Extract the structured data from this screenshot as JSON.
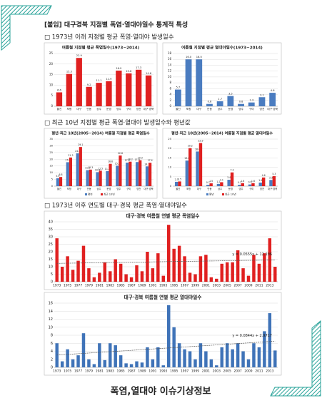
{
  "title": "[붙임] 대구경북 지점별 폭염·열대야일수 통계적 특성",
  "sections": [
    {
      "heading": "□ 1973년 이래 지점별 평균 폭염·열대야 발생일수"
    },
    {
      "heading": "□ 최근 10년 지점별 평균 폭염·열대야 발생일수와 평년값"
    },
    {
      "heading": "□ 1973년 이후 연도별 대구·경북 평균 폭염·열대야일수"
    }
  ],
  "chart_data": [
    {
      "type": "bar",
      "title": "여름철 지점별 평균 폭염일수(1973~2014)",
      "categories": [
        "울진",
        "포항",
        "대구",
        "안동",
        "상주",
        "문경",
        "영주",
        "구미",
        "영천",
        "대구·경북"
      ],
      "series": [
        {
          "color": "#e02020",
          "values": [
            6.6,
            15.3,
            22.9,
            9.2,
            11.1,
            11.9,
            16.9,
            15.6,
            17.3,
            14.6
          ]
        }
      ],
      "ylim": [
        0,
        25
      ],
      "yticks": [
        0,
        5,
        10,
        15,
        20,
        25
      ],
      "grid": true,
      "show_values": true
    },
    {
      "type": "bar",
      "title": "여름철 지점별 평균 열대야일수(1973~2014)",
      "categories": [
        "울진",
        "포항",
        "대구",
        "안동",
        "상주",
        "문경",
        "영주",
        "구미",
        "영천",
        "대구·경북"
      ],
      "series": [
        {
          "color": "#4a7cc0",
          "values": [
            5.7,
            16,
            16,
            0.8,
            1.7,
            3.5,
            0.8,
            1.3,
            3.1,
            4.6
          ],
          "value_labels": [
            "5.7",
            "16.0",
            "16.0",
            "0.8",
            "1.7",
            "3.5",
            "0.8",
            "1.3",
            "3.1",
            "4.6"
          ]
        }
      ],
      "ylim": [
        0,
        18
      ],
      "yticks": [
        0,
        2,
        4,
        6,
        8,
        10,
        12,
        14,
        16,
        18
      ],
      "grid": true,
      "show_values": true
    },
    {
      "type": "bar",
      "title": "평년·최근 10년(2005~2014) 여름철 지점별 평균 폭염일수",
      "categories": [
        "울진",
        "포항",
        "대구",
        "안동",
        "상주",
        "문경",
        "영주",
        "구미",
        "영천",
        "대구·경북"
      ],
      "series": [
        {
          "name": "평년",
          "color": "#4a7cc0",
          "values": [
            5.9,
            17.8,
            24.4,
            11.9,
            10.4,
            11.2,
            15.2,
            17.5,
            17.9,
            14.7
          ]
        },
        {
          "name": "최근 10년",
          "color": "#e02020",
          "values": [
            6.8,
            21.3,
            29.1,
            12.3,
            11.5,
            16.6,
            22.8,
            18.2,
            19.3,
            17.4
          ]
        }
      ],
      "ylim": [
        0,
        35
      ],
      "yticks": [
        0,
        5,
        10,
        15,
        20,
        25,
        30,
        35
      ],
      "grid": true,
      "show_values": true,
      "legend": "bottom"
    },
    {
      "type": "bar",
      "title": "평년·최근 10년(2005~2014) 여름철 지점별 평균 열대야일수",
      "categories": [
        "울진",
        "포항",
        "대구",
        "안동",
        "상주",
        "문경",
        "영주",
        "구미",
        "영천",
        "대구·경북"
      ],
      "series": [
        {
          "name": "평년",
          "color": "#4a7cc0",
          "values": [
            2.3,
            13.6,
            18.4,
            0.7,
            1.2,
            3.4,
            0.7,
            0.9,
            1.9,
            3.3
          ]
        },
        {
          "name": "최근 10년",
          "color": "#e02020",
          "values": [
            2.5,
            20.2,
            22.9,
            1.5,
            2.1,
            7.3,
            1.6,
            1.6,
            4.6,
            5.3
          ]
        }
      ],
      "ylim": [
        0,
        25
      ],
      "yticks": [
        0,
        5,
        10,
        15,
        20,
        25
      ],
      "grid": true,
      "show_values": true,
      "legend": "bottom"
    },
    {
      "type": "bar",
      "title": "대구·경북 여름철 연별 평균 폭염일수",
      "x": [
        1973,
        1974,
        1975,
        1976,
        1977,
        1978,
        1979,
        1980,
        1981,
        1982,
        1983,
        1984,
        1985,
        1986,
        1987,
        1988,
        1989,
        1990,
        1991,
        1992,
        1993,
        1994,
        1995,
        1996,
        1997,
        1998,
        1999,
        2000,
        2001,
        2002,
        2003,
        2004,
        2005,
        2006,
        2007,
        2008,
        2009,
        2010,
        2011,
        2012,
        2013,
        2014
      ],
      "xticks": [
        1973,
        1975,
        1977,
        1979,
        1981,
        1983,
        1985,
        1987,
        1989,
        1991,
        1993,
        1995,
        1997,
        1999,
        2001,
        2003,
        2005,
        2007,
        2009,
        2011,
        2013
      ],
      "series": [
        {
          "color": "#e02020",
          "values": [
            29,
            10,
            17,
            8,
            14,
            24,
            9,
            3,
            6,
            13,
            7,
            15,
            12,
            5,
            3,
            11,
            7,
            20,
            9,
            19,
            4,
            38,
            22,
            24,
            17,
            6,
            5,
            17,
            18,
            3,
            2,
            12,
            13,
            13,
            21,
            9,
            4,
            18,
            12,
            19,
            29,
            10
          ]
        }
      ],
      "ylim": [
        0,
        40
      ],
      "yticks": [
        0,
        5,
        10,
        15,
        20,
        25,
        30,
        35,
        40
      ],
      "grid": true,
      "trendline": {
        "slope": 0.0555,
        "intercept": 12.196,
        "label": "y = 0.0555x + 12.196"
      }
    },
    {
      "type": "bar",
      "title": "대구·경북 여름철 연별 평균 열대야일수",
      "x": [
        1973,
        1974,
        1975,
        1976,
        1977,
        1978,
        1979,
        1980,
        1981,
        1982,
        1983,
        1984,
        1985,
        1986,
        1987,
        1988,
        1989,
        1990,
        1991,
        1992,
        1993,
        1994,
        1995,
        1996,
        1997,
        1998,
        1999,
        2000,
        2001,
        2002,
        2003,
        2004,
        2005,
        2006,
        2007,
        2008,
        2009,
        2010,
        2011,
        2012,
        2013,
        2014
      ],
      "xticks": [
        1973,
        1975,
        1977,
        1979,
        1981,
        1983,
        1985,
        1987,
        1989,
        1991,
        1993,
        1995,
        1997,
        1999,
        2001,
        2003,
        2005,
        2007,
        2009,
        2011,
        2013
      ],
      "series": [
        {
          "color": "#3f73b8",
          "values": [
            6,
            1.5,
            4.5,
            2,
            3,
            8.5,
            2,
            0.8,
            6,
            1.8,
            6,
            5.5,
            3,
            1,
            0.8,
            1.5,
            1.2,
            5,
            2,
            5,
            0.5,
            15.5,
            10,
            6,
            4.5,
            4,
            2,
            6,
            4,
            2,
            0.5,
            5,
            6,
            4.5,
            6,
            4,
            2,
            6,
            5,
            9,
            13.5,
            4.2
          ]
        }
      ],
      "ylim": [
        0,
        16
      ],
      "yticks": [
        0,
        2,
        4,
        6,
        8,
        10,
        12,
        14,
        16
      ],
      "grid": true,
      "trendline": {
        "slope": 0.0844,
        "intercept": 2.9717,
        "label": "y = 0.0844x + 2.9717"
      }
    }
  ],
  "footer": "폭염,열대야 이슈기상정보"
}
